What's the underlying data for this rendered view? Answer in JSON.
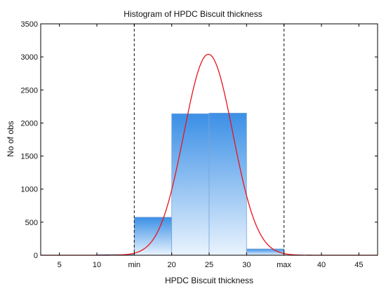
{
  "chart_data": {
    "type": "bar",
    "title": "Histogram of HPDC Biscuit thickness",
    "xlabel": "HPDC Biscuit thickness",
    "ylabel": "No of obs",
    "xlim": [
      2.5,
      47.5
    ],
    "ylim": [
      0,
      3500
    ],
    "x_ticks": [
      {
        "value": 5,
        "label": "5"
      },
      {
        "value": 10,
        "label": "10"
      },
      {
        "value": 15,
        "label": "min"
      },
      {
        "value": 20,
        "label": "20"
      },
      {
        "value": 25,
        "label": "25"
      },
      {
        "value": 30,
        "label": "30"
      },
      {
        "value": 35,
        "label": "max"
      },
      {
        "value": 40,
        "label": "40"
      },
      {
        "value": 45,
        "label": "45"
      }
    ],
    "y_ticks": [
      0,
      500,
      1000,
      1500,
      2000,
      2500,
      3000,
      3500
    ],
    "bins": [
      {
        "from": 10,
        "to": 15,
        "count": 10
      },
      {
        "from": 15,
        "to": 20,
        "count": 575
      },
      {
        "from": 20,
        "to": 25,
        "count": 2140
      },
      {
        "from": 25,
        "to": 30,
        "count": 2150
      },
      {
        "from": 30,
        "to": 35,
        "count": 95
      }
    ],
    "reference_lines": [
      {
        "x": 15,
        "label": "min",
        "style": "dashed"
      },
      {
        "x": 35,
        "label": "max",
        "style": "dashed"
      }
    ],
    "fit_curve": {
      "type": "normal",
      "mean": 24.9,
      "sd": 3.27,
      "peak": 3040,
      "color": "#e8141d"
    },
    "colors": {
      "bar_top": "#3b8fe6",
      "bar_bottom": "#eaf4fe",
      "bar_edge": "#7aa6d6"
    },
    "grid": false,
    "legend": "none"
  }
}
